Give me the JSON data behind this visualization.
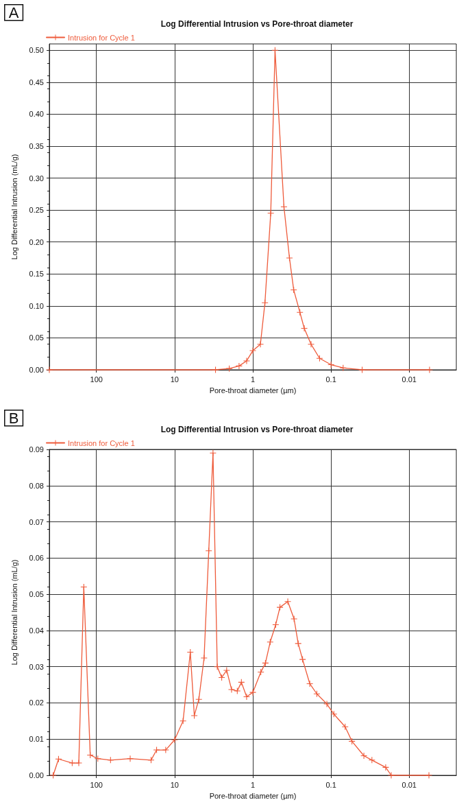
{
  "chart_data": [
    {
      "type": "line",
      "title": "Log Differential Intrusion vs Pore-throat diameter",
      "xlabel": "Pore-throat diameter (µm)",
      "ylabel": "Log Differential Intrusion (mL/g)",
      "annotations": [
        "A"
      ],
      "log": "x",
      "xlim": [
        400,
        0.0025
      ],
      "xticks": [
        100,
        10,
        1,
        0.1,
        0.01
      ],
      "ylim": [
        0,
        0.51
      ],
      "yticks": [
        {
          "value": 0,
          "label": "0.00"
        },
        {
          "value": 0.05,
          "label": "0.05"
        },
        {
          "value": 0.1,
          "label": "0.10"
        },
        {
          "value": 0.15,
          "label": "0.15"
        },
        {
          "value": 0.2,
          "label": "0.20"
        },
        {
          "value": 0.25,
          "label": "0.25"
        },
        {
          "value": 0.3,
          "label": "0.30"
        },
        {
          "value": 0.35,
          "label": "0.35"
        },
        {
          "value": 0.4,
          "label": "0.40"
        },
        {
          "value": 0.45,
          "label": "0.45"
        },
        {
          "value": 0.5,
          "label": "0.50"
        }
      ],
      "grid": true,
      "legend": "top left",
      "marker": "cross",
      "line_style": "solid",
      "x": [
        400,
        3,
        2,
        1.5,
        1.2,
        1.0,
        0.8,
        0.7,
        0.59,
        0.52,
        0.4,
        0.34,
        0.3,
        0.25,
        0.22,
        0.18,
        0.14,
        0.1,
        0.07,
        0.04,
        0.0055
      ],
      "series": [
        {
          "name": "Intrusion for Cycle 1",
          "color": "#ee5a3a",
          "values": [
            0,
            0,
            0.002,
            0.006,
            0.014,
            0.03,
            0.04,
            0.105,
            0.245,
            0.5,
            0.255,
            0.175,
            0.125,
            0.09,
            0.065,
            0.04,
            0.018,
            0.008,
            0.003,
            0,
            0
          ]
        }
      ]
    },
    {
      "type": "line",
      "title": "Log Differential Intrusion vs Pore-throat diameter",
      "xlabel": "Pore-throat diameter (µm)",
      "ylabel": "Log Differential Intrusion (mL/g)",
      "annotations": [
        "B"
      ],
      "log": "x",
      "xlim": [
        400,
        0.0025
      ],
      "xticks": [
        100,
        10,
        1,
        0.1,
        0.01
      ],
      "ylim": [
        0,
        0.09
      ],
      "yticks": [
        {
          "value": 0,
          "label": "0.00"
        },
        {
          "value": 0.01,
          "label": "0.01"
        },
        {
          "value": 0.02,
          "label": "0.02"
        },
        {
          "value": 0.03,
          "label": "0.03"
        },
        {
          "value": 0.04,
          "label": "0.04"
        },
        {
          "value": 0.05,
          "label": "0.05"
        },
        {
          "value": 0.06,
          "label": "0.06"
        },
        {
          "value": 0.07,
          "label": "0.07"
        },
        {
          "value": 0.08,
          "label": "0.08"
        },
        {
          "value": 0.09,
          "label": "0.09"
        }
      ],
      "grid": true,
      "legend": "top left",
      "marker": "cross",
      "line_style": "solid",
      "x": [
        357,
        305,
        204,
        168,
        145,
        120,
        96,
        66,
        37,
        20,
        17,
        13,
        10,
        7.8,
        6.3,
        5.6,
        4.9,
        4.2,
        3.66,
        3.23,
        2.85,
        2.5,
        2.16,
        1.87,
        1.58,
        1.4,
        1.2,
        1,
        0.79,
        0.69,
        0.6,
        0.51,
        0.45,
        0.357,
        0.297,
        0.263,
        0.231,
        0.187,
        0.152,
        0.113,
        0.092,
        0.066,
        0.054,
        0.038,
        0.03,
        0.02,
        0.017,
        0.0056
      ],
      "series": [
        {
          "name": "Intrusion for Cycle 1",
          "color": "#ee5a3a",
          "values": [
            0,
            0.0045,
            0.0034,
            0.0034,
            0.052,
            0.0056,
            0.0046,
            0.0042,
            0.0046,
            0.0042,
            0.007,
            0.007,
            0.0098,
            0.015,
            0.034,
            0.0165,
            0.021,
            0.0324,
            0.062,
            0.089,
            0.03,
            0.027,
            0.029,
            0.0237,
            0.0233,
            0.0257,
            0.0217,
            0.0229,
            0.0285,
            0.031,
            0.0368,
            0.0416,
            0.0464,
            0.048,
            0.0432,
            0.0364,
            0.032,
            0.0253,
            0.0225,
            0.0197,
            0.0169,
            0.0134,
            0.0094,
            0.0054,
            0.0042,
            0.0022,
            0,
            0
          ]
        }
      ]
    }
  ]
}
